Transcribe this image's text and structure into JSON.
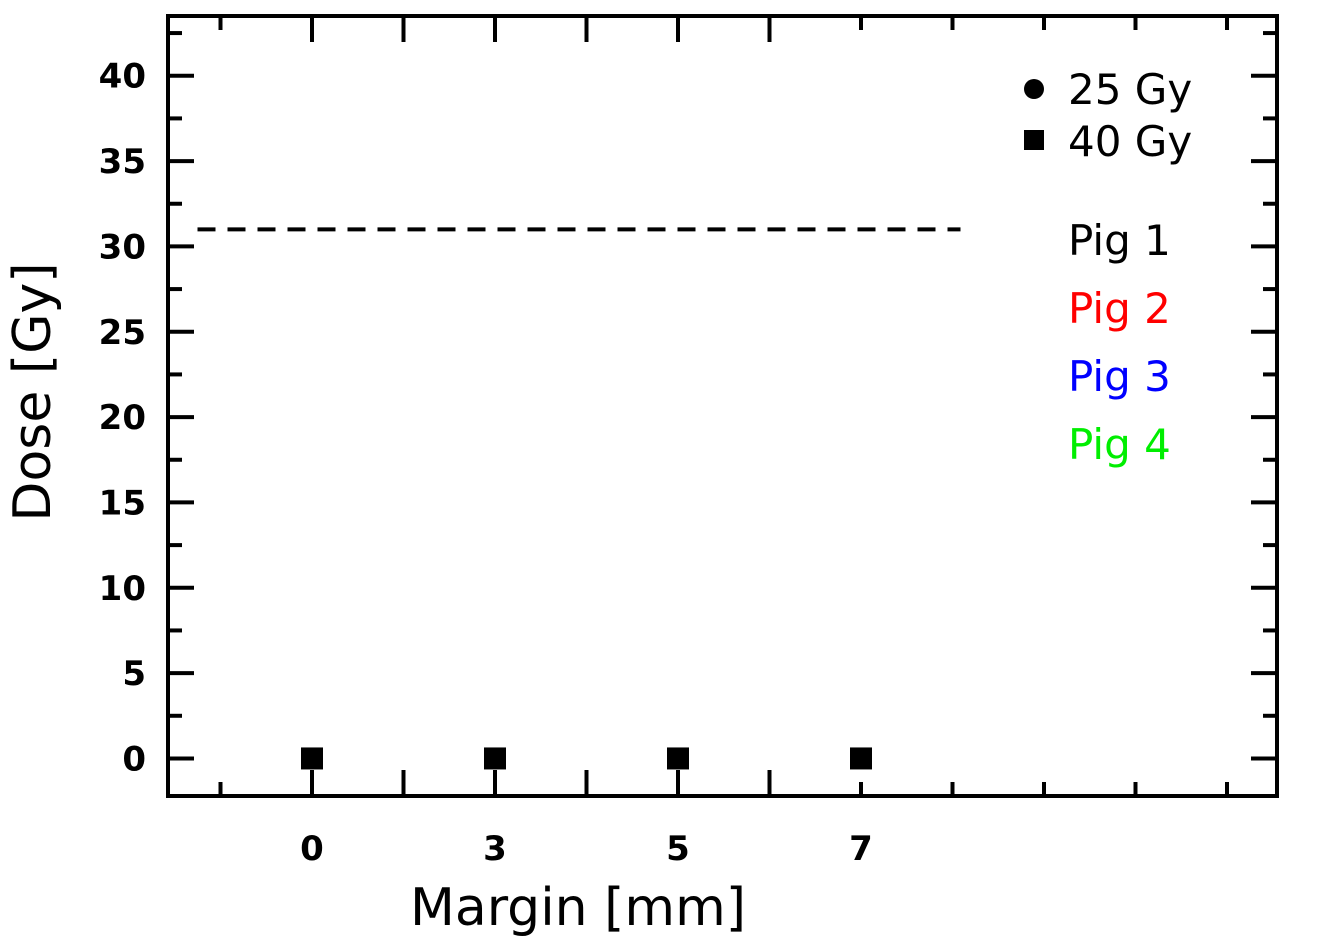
{
  "chart_data": {
    "type": "scatter",
    "xlabel": "Margin [mm]",
    "ylabel": "Dose [Gy]",
    "x_tick_labels": [
      "0",
      "3",
      "5",
      "7"
    ],
    "y_tick_labels": [
      "0",
      "5",
      "10",
      "15",
      "20",
      "25",
      "30",
      "35",
      "40"
    ],
    "ylim": [
      -2.2,
      43.5
    ],
    "reference_line": {
      "y": 31,
      "style": "dashed",
      "x_start_category": -0.5,
      "x_end_category": 3.5
    },
    "legend_markers": [
      {
        "marker": "circle",
        "label": "25 Gy"
      },
      {
        "marker": "square",
        "label": "40 Gy"
      }
    ],
    "legend_groups": [
      {
        "label": "Pig 1",
        "color": "#000000"
      },
      {
        "label": "Pig 2",
        "color": "#ff0000"
      },
      {
        "label": "Pig 3",
        "color": "#0000ff"
      },
      {
        "label": "Pig 4",
        "color": "#00ee00"
      }
    ],
    "series": [
      {
        "marker": "square",
        "color": "#000000",
        "points": [
          {
            "x": "0",
            "y": 0
          },
          {
            "x": "3",
            "y": 0
          },
          {
            "x": "5",
            "y": 0
          },
          {
            "x": "7",
            "y": 0
          }
        ]
      }
    ]
  }
}
